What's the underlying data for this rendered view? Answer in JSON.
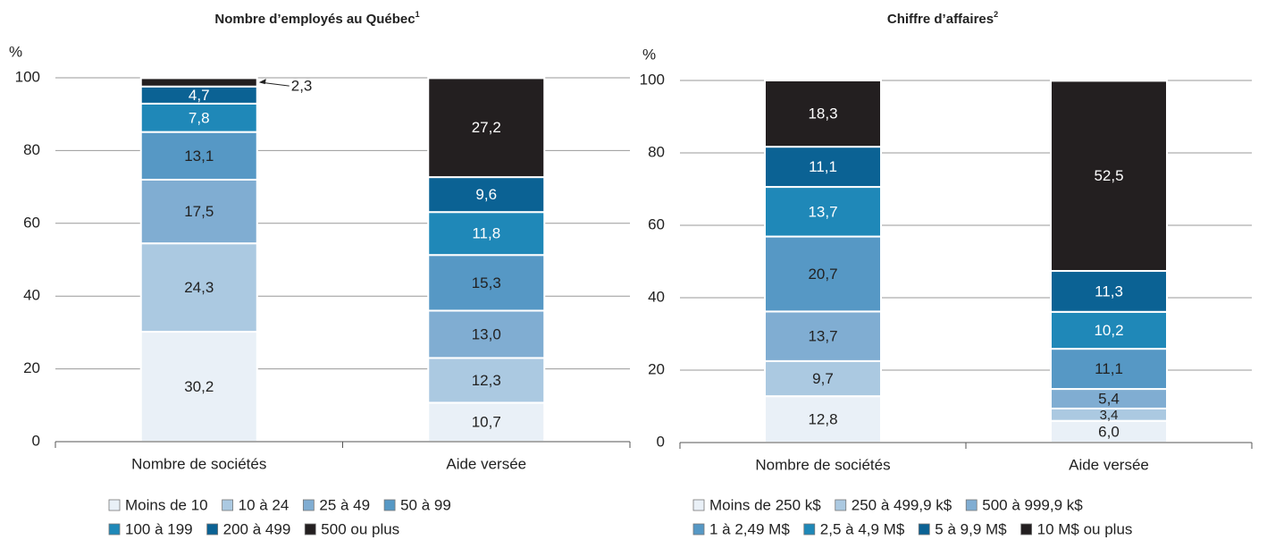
{
  "chart_data": [
    {
      "type": "bar",
      "stacked": true,
      "title": "Nombre d’employés au Québec",
      "title_note": "1",
      "y_label": "%",
      "categories": [
        "Nombre de sociétés",
        "Aide versée"
      ],
      "series": [
        {
          "name": "Moins de 10",
          "color": "#e9f0f7",
          "values": [
            30.2,
            10.7
          ],
          "value_labels": [
            "30,2",
            "10,7"
          ]
        },
        {
          "name": "10 à 24",
          "color": "#abc9e1",
          "values": [
            24.3,
            12.3
          ],
          "value_labels": [
            "24,3",
            "12,3"
          ]
        },
        {
          "name": "25 à 49",
          "color": "#80add2",
          "values": [
            17.5,
            13.0
          ],
          "value_labels": [
            "17,5",
            "13,0"
          ]
        },
        {
          "name": "50 à 99",
          "color": "#5698c5",
          "values": [
            13.1,
            15.3
          ],
          "value_labels": [
            "13,1",
            "15,3"
          ]
        },
        {
          "name": "100 à 199",
          "color": "#1f88b8",
          "values": [
            7.8,
            11.8
          ],
          "value_labels": [
            "7,8",
            "11,8"
          ]
        },
        {
          "name": "200 à 499",
          "color": "#0b6294",
          "values": [
            4.7,
            9.6
          ],
          "value_labels": [
            "4,7",
            "9,6"
          ]
        },
        {
          "name": "500 ou plus",
          "color": "#231f20",
          "values": [
            2.3,
            27.2
          ],
          "value_labels": [
            "2,3",
            "27,2"
          ]
        }
      ],
      "ylim": [
        0,
        100
      ],
      "yticks": [
        0,
        20,
        40,
        60,
        80,
        100
      ],
      "grid": true
    },
    {
      "type": "bar",
      "stacked": true,
      "title": "Chiffre d’affaires",
      "title_note": "2",
      "y_label": "%",
      "categories": [
        "Nombre de sociétés",
        "Aide versée"
      ],
      "series": [
        {
          "name": "Moins de 250 k$",
          "color": "#e9f0f7",
          "values": [
            12.8,
            6.0
          ],
          "value_labels": [
            "12,8",
            "6,0"
          ]
        },
        {
          "name": "250 à 499,9 k$",
          "color": "#abc9e1",
          "values": [
            9.7,
            3.4
          ],
          "value_labels": [
            "9,7",
            "3,4"
          ]
        },
        {
          "name": "500 à 999,9 k$",
          "color": "#80add2",
          "values": [
            13.7,
            5.4
          ],
          "value_labels": [
            "13,7",
            "5,4"
          ]
        },
        {
          "name": "1 à 2,49 M$",
          "color": "#5698c5",
          "values": [
            20.7,
            11.1
          ],
          "value_labels": [
            "20,7",
            "11,1"
          ]
        },
        {
          "name": "2,5 à 4,9 M$",
          "color": "#1f88b8",
          "values": [
            13.7,
            10.2
          ],
          "value_labels": [
            "13,7",
            "10,2"
          ]
        },
        {
          "name": "5 à 9,9 M$",
          "color": "#0b6294",
          "values": [
            11.1,
            11.3
          ],
          "value_labels": [
            "11,1",
            "11,3"
          ]
        },
        {
          "name": "10 M$ ou plus",
          "color": "#231f20",
          "values": [
            18.3,
            52.5
          ],
          "value_labels": [
            "18,3",
            "52,5"
          ]
        }
      ],
      "ylim": [
        0,
        100
      ],
      "yticks": [
        0,
        20,
        40,
        60,
        80,
        100
      ],
      "grid": true
    }
  ]
}
